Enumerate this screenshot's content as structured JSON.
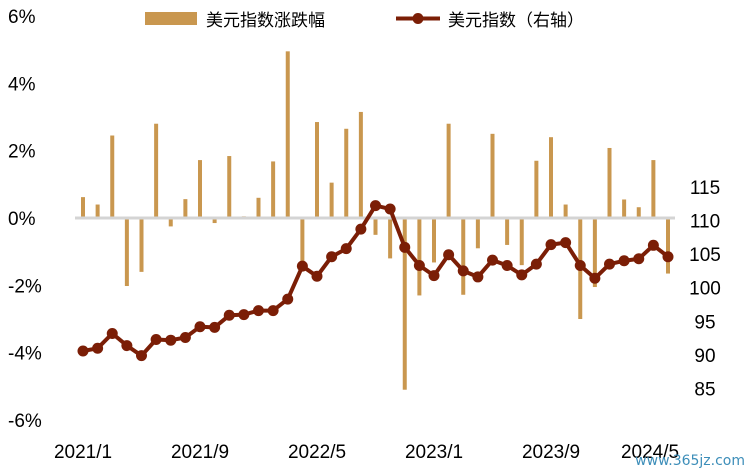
{
  "chart_data": {
    "type": "bar+line",
    "x": [
      "2021/1",
      "2021/2",
      "2021/3",
      "2021/4",
      "2021/5",
      "2021/6",
      "2021/7",
      "2021/8",
      "2021/9",
      "2021/10",
      "2021/11",
      "2021/12",
      "2022/1",
      "2022/2",
      "2022/3",
      "2022/4",
      "2022/5",
      "2022/6",
      "2022/7",
      "2022/8",
      "2022/9",
      "2022/10",
      "2022/11",
      "2022/12",
      "2023/1",
      "2023/2",
      "2023/3",
      "2023/4",
      "2023/5",
      "2023/6",
      "2023/7",
      "2023/8",
      "2023/9",
      "2023/10",
      "2023/11",
      "2023/12",
      "2024/1",
      "2024/2",
      "2024/3",
      "2024/4",
      "2024/5"
    ],
    "x_tick_labels": [
      "2021/1",
      "2021/9",
      "2022/5",
      "2023/1",
      "2023/9",
      "2024/5"
    ],
    "x_tick_every": 8,
    "series": [
      {
        "name": "美元指数涨跌幅",
        "type": "bar",
        "axis": "left",
        "color": "#c9974f",
        "values": [
          0.62,
          0.4,
          2.45,
          -2.02,
          -1.6,
          2.8,
          -0.25,
          0.56,
          1.72,
          -0.15,
          1.84,
          0.05,
          0.6,
          1.68,
          4.95,
          -1.4,
          2.85,
          1.05,
          2.65,
          3.15,
          -0.5,
          -1.2,
          -5.1,
          -2.3,
          -1.32,
          2.8,
          -2.28,
          -0.9,
          2.5,
          -0.8,
          -1.4,
          1.7,
          2.4,
          0.4,
          -3.0,
          -2.05,
          2.08,
          0.55,
          0.32,
          1.72,
          -1.65
        ]
      },
      {
        "name": "美元指数（右轴）",
        "type": "line",
        "axis": "right",
        "color": "#7b1e06",
        "values": [
          90.6,
          91.0,
          93.2,
          91.4,
          89.9,
          92.3,
          92.2,
          92.6,
          94.2,
          94.1,
          95.9,
          96.0,
          96.6,
          96.6,
          98.3,
          103.2,
          101.7,
          104.6,
          105.8,
          108.7,
          112.2,
          111.7,
          106.0,
          103.3,
          101.8,
          104.9,
          102.5,
          101.6,
          104.1,
          103.3,
          101.9,
          103.5,
          106.4,
          106.7,
          103.3,
          101.4,
          103.5,
          104.0,
          104.3,
          106.3,
          104.6
        ]
      }
    ],
    "y_left": {
      "min": -6,
      "max": 6,
      "step": 2,
      "format": "percent",
      "tick_labels": [
        "-6%",
        "-4%",
        "-2%",
        "0%",
        "2%",
        "4%",
        "6%"
      ]
    },
    "y_right": {
      "min": 85,
      "max": 115,
      "step": 5,
      "tick_labels": [
        "85",
        "90",
        "95",
        "100",
        "105",
        "110",
        "115"
      ]
    },
    "grid": false,
    "legend_position": "top"
  },
  "legend": {
    "bar_label": "美元指数涨跌幅",
    "line_label": "美元指数（右轴）"
  },
  "watermark": "www.365jz.com"
}
